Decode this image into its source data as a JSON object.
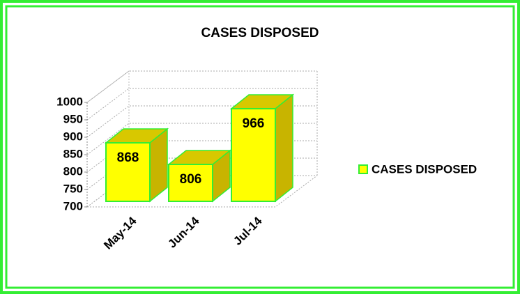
{
  "chart_data": {
    "type": "bar3d",
    "title": "CASES DISPOSED",
    "categories": [
      "May-14",
      "Jun-14",
      "Jul-14"
    ],
    "series": [
      {
        "name": "CASES DISPOSED",
        "color": "#ffff00",
        "values": [
          868,
          806,
          966
        ]
      }
    ],
    "ylim": [
      700,
      1000
    ],
    "yticks": [
      700,
      750,
      800,
      850,
      900,
      950,
      1000
    ],
    "grid": true,
    "legend": "right"
  }
}
